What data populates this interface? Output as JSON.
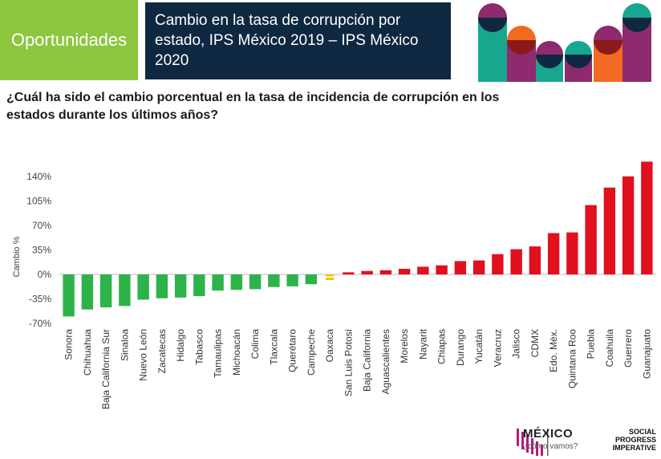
{
  "header": {
    "tag": "Oportunidades",
    "title": "Cambio en la tasa de corrupción por estado, IPS México 2019 – IPS México 2020"
  },
  "question": "¿Cuál ha sido el cambio porcentual en la tasa de incidencia de corrupción en los estados durante los últimos años?",
  "colors": {
    "tag_bg": "#8dc63f",
    "title_bg": "#0f2841",
    "negative": "#2db34a",
    "near_zero": "#f2c400",
    "positive": "#e0101e"
  },
  "decoration": {
    "icon": "social-progress-columns-graphic"
  },
  "chart_data": {
    "type": "bar",
    "ylabel": "Cambio %",
    "ylim": [
      -70,
      160
    ],
    "yticks": [
      -70,
      -35,
      0,
      35,
      70,
      105,
      140
    ],
    "ytick_labels": [
      "-70%",
      "-35%",
      "0%",
      "35%",
      "70%",
      "105%",
      "140%"
    ],
    "grid": false,
    "legend": "none",
    "categories": [
      "Sonora",
      "Chihuahua",
      "Baja California Sur",
      "Sinaloa",
      "Nuevo León",
      "Zacatecas",
      "Hidalgo",
      "Tabasco",
      "Tamaulipas",
      "Michoacán",
      "Colima",
      "Tlaxcala",
      "Querétaro",
      "Campeche",
      "Oaxaca",
      "San Luis Potosí",
      "Baja California",
      "Aguascalientes",
      "Morelos",
      "Nayarit",
      "Chiapas",
      "Durango",
      "Yucatán",
      "Veracruz",
      "Jalisco",
      "CDMX",
      "Edo. Méx.",
      "Quintana Roo",
      "Puebla",
      "Coahuila",
      "Guerrero",
      "Guanajuato"
    ],
    "values": [
      -60,
      -50,
      -47,
      -45,
      -36,
      -34,
      -33,
      -31,
      -23,
      -22,
      -21,
      -18,
      -17,
      -14,
      -4,
      3,
      5,
      6,
      8,
      11,
      13,
      19,
      20,
      29,
      36,
      40,
      59,
      60,
      99,
      124,
      140,
      161
    ]
  },
  "footer": {
    "mexico_title": "MÉXICO",
    "mexico_subtitle": "¿cómo vamos?",
    "spi_lines": [
      "SOCIAL",
      "PROGRESS",
      "IMPERATIVE"
    ]
  }
}
